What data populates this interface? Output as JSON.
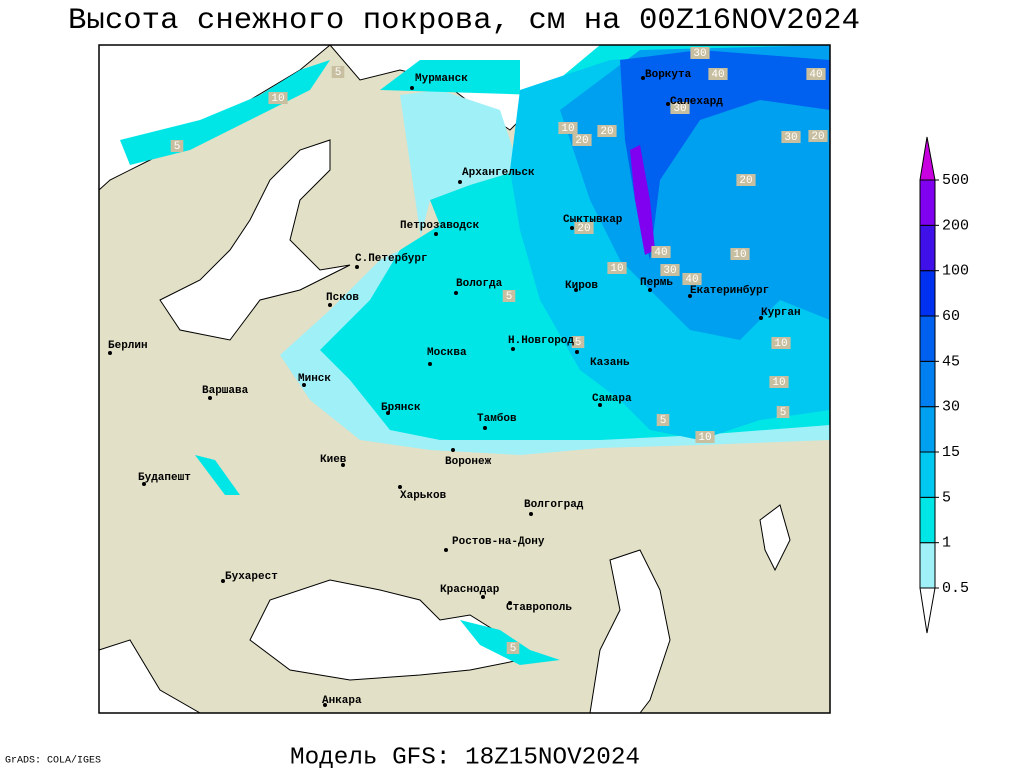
{
  "title": "Высота снежного покрова, см на 00Z16NOV2024",
  "footer_model": "Модель GFS: 18Z15NOV2024",
  "footer_credit": "GrADS: COLA/IGES",
  "cities": [
    "Мурманск",
    "Архангельск",
    "Воркута",
    "Салехард",
    "Петрозаводск",
    "Сыктывкар",
    "С.Петербург",
    "Вологда",
    "Киров",
    "Пермь",
    "Екатеринбург",
    "Курган",
    "Псков",
    "Берлин",
    "Н.Новгород",
    "Москва",
    "Казань",
    "Минск",
    "Варшава",
    "Самара",
    "Брянск",
    "Тамбов",
    "Воронеж",
    "Киев",
    "Будапешт",
    "Харьков",
    "Волгоград",
    "Ростов-на-Дону",
    "Бухарест",
    "Краснодар",
    "Ставрополь",
    "Анкара"
  ],
  "legend": {
    "levels": [
      0.5,
      1,
      5,
      15,
      30,
      45,
      60,
      100,
      200,
      500
    ],
    "colors": [
      "#a0f0f8",
      "#00e6e6",
      "#00c8f0",
      "#00a0f0",
      "#0080f0",
      "#0060f0",
      "#0030f0",
      "#4010e8",
      "#8000f0",
      "#c800e0"
    ]
  },
  "contour_labels": [
    10,
    5,
    5,
    30,
    40,
    40,
    30,
    10,
    20,
    20,
    30,
    20,
    20,
    20,
    40,
    30,
    10,
    10,
    40,
    10,
    10,
    5,
    5,
    10,
    5,
    5,
    5
  ]
}
